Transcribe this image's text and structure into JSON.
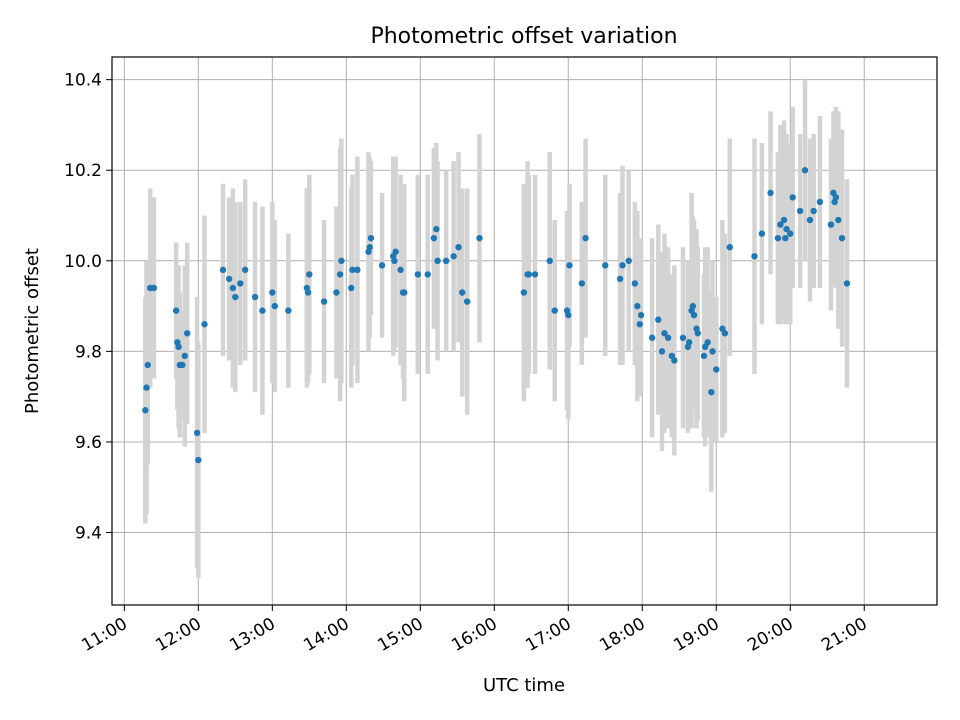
{
  "chart_data": {
    "type": "scatter",
    "title": "Photometric offset variation",
    "xlabel": "UTC time",
    "ylabel": "Photometric offset",
    "xlim": [
      "10:50",
      "21:59"
    ],
    "ylim": [
      9.24,
      10.45
    ],
    "grid": true,
    "xticks": [
      "11:00",
      "12:00",
      "13:00",
      "14:00",
      "15:00",
      "16:00",
      "17:00",
      "18:00",
      "19:00",
      "20:00",
      "21:00"
    ],
    "yticks": [
      "9.4",
      "9.6",
      "9.8",
      "10.0",
      "10.2",
      "10.4"
    ],
    "colors": {
      "points": "#1f77b4",
      "errorbars": "#d3d3d3",
      "grid": "#b0b0b0"
    },
    "series": [
      {
        "x": [
          "11:17",
          "11:18",
          "11:19",
          "11:21",
          "11:24",
          "11:42",
          "11:43",
          "11:44",
          "11:45",
          "11:47",
          "11:49",
          "11:51",
          "11:59",
          "12:00",
          "12:05",
          "12:20",
          "12:25",
          "12:28",
          "12:30",
          "12:34",
          "12:38",
          "12:46",
          "12:52",
          "13:00",
          "13:02",
          "13:13",
          "13:28",
          "13:29",
          "13:30",
          "13:42",
          "13:52",
          "13:55",
          "13:56",
          "14:04",
          "14:05",
          "14:09",
          "14:18",
          "14:19",
          "14:20",
          "14:29",
          "14:38",
          "14:39",
          "14:40",
          "14:44",
          "14:46",
          "14:47",
          "14:58",
          "15:06",
          "15:11",
          "15:13",
          "15:14",
          "15:21",
          "15:27",
          "15:31",
          "15:34",
          "15:38",
          "15:48",
          "16:24",
          "16:27",
          "16:28",
          "16:33",
          "16:45",
          "16:49",
          "16:59",
          "17:00",
          "17:01",
          "17:11",
          "17:14",
          "17:30",
          "17:42",
          "17:44",
          "17:49",
          "17:54",
          "17:56",
          "17:58",
          "17:59",
          "18:08",
          "18:13",
          "18:16",
          "18:18",
          "18:21",
          "18:24",
          "18:26",
          "18:33",
          "18:37",
          "18:38",
          "18:40",
          "18:41",
          "18:42",
          "18:44",
          "18:45",
          "18:50",
          "18:51",
          "18:53",
          "18:56",
          "18:57",
          "19:00",
          "19:05",
          "19:07",
          "19:11",
          "19:31",
          "19:37",
          "19:44",
          "19:50",
          "19:52",
          "19:55",
          "19:56",
          "19:57",
          "20:00",
          "20:02",
          "20:08",
          "20:12",
          "20:16",
          "20:19",
          "20:24",
          "20:33",
          "20:35",
          "20:36",
          "20:37",
          "20:39",
          "20:42",
          "20:46"
        ],
        "y": [
          9.67,
          9.72,
          9.77,
          9.94,
          9.94,
          9.89,
          9.82,
          9.81,
          9.77,
          9.77,
          9.79,
          9.84,
          9.62,
          9.56,
          9.86,
          9.98,
          9.96,
          9.94,
          9.92,
          9.95,
          9.98,
          9.92,
          9.89,
          9.93,
          9.9,
          9.89,
          9.94,
          9.93,
          9.97,
          9.91,
          9.93,
          9.97,
          10.0,
          9.94,
          9.98,
          9.98,
          10.02,
          10.03,
          10.05,
          9.99,
          10.01,
          10.0,
          10.02,
          9.98,
          9.93,
          9.93,
          9.97,
          9.97,
          10.05,
          10.07,
          10.0,
          10.0,
          10.01,
          10.03,
          9.93,
          9.91,
          10.05,
          9.93,
          9.97,
          9.97,
          9.97,
          10.0,
          9.89,
          9.89,
          9.88,
          9.99,
          9.95,
          10.05,
          9.99,
          9.96,
          9.99,
          10.0,
          9.95,
          9.9,
          9.86,
          9.88,
          9.83,
          9.87,
          9.8,
          9.84,
          9.83,
          9.79,
          9.78,
          9.83,
          9.81,
          9.82,
          9.89,
          9.9,
          9.88,
          9.85,
          9.84,
          9.79,
          9.81,
          9.82,
          9.71,
          9.8,
          9.76,
          9.85,
          9.84,
          10.03,
          10.01,
          10.06,
          10.15,
          10.05,
          10.08,
          10.09,
          10.05,
          10.07,
          10.06,
          10.14,
          10.11,
          10.2,
          10.09,
          10.11,
          10.13,
          10.08,
          10.15,
          10.13,
          10.14,
          10.09,
          10.05,
          9.95
        ],
        "yerr": [
          0.25,
          0.28,
          0.22,
          0.22,
          0.2,
          0.15,
          0.15,
          0.18,
          0.16,
          0.12,
          0.2,
          0.2,
          0.3,
          0.26,
          0.24,
          0.19,
          0.18,
          0.22,
          0.21,
          0.18,
          0.2,
          0.21,
          0.23,
          0.2,
          0.19,
          0.17,
          0.22,
          0.2,
          0.22,
          0.18,
          0.19,
          0.28,
          0.27,
          0.22,
          0.21,
          0.25,
          0.22,
          0.2,
          0.17,
          0.16,
          0.22,
          0.2,
          0.21,
          0.21,
          0.19,
          0.24,
          0.22,
          0.22,
          0.2,
          0.19,
          0.22,
          0.2,
          0.21,
          0.21,
          0.23,
          0.25,
          0.23,
          0.24,
          0.25,
          0.22,
          0.22,
          0.24,
          0.2,
          0.22,
          0.23,
          0.18,
          0.18,
          0.22,
          0.2,
          0.19,
          0.22,
          0.2,
          0.18,
          0.21,
          0.16,
          0.17,
          0.22,
          0.21,
          0.22,
          0.22,
          0.2,
          0.18,
          0.21,
          0.2,
          0.19,
          0.18,
          0.26,
          0.2,
          0.21,
          0.22,
          0.19,
          0.18,
          0.22,
          0.21,
          0.22,
          0.2,
          0.16,
          0.24,
          0.22,
          0.24,
          0.26,
          0.2,
          0.18,
          0.19,
          0.22,
          0.22,
          0.19,
          0.21,
          0.2,
          0.2,
          0.17,
          0.2,
          0.18,
          0.17,
          0.19,
          0.19,
          0.18,
          0.18,
          0.2,
          0.24,
          0.24,
          0.23
        ]
      }
    ]
  }
}
